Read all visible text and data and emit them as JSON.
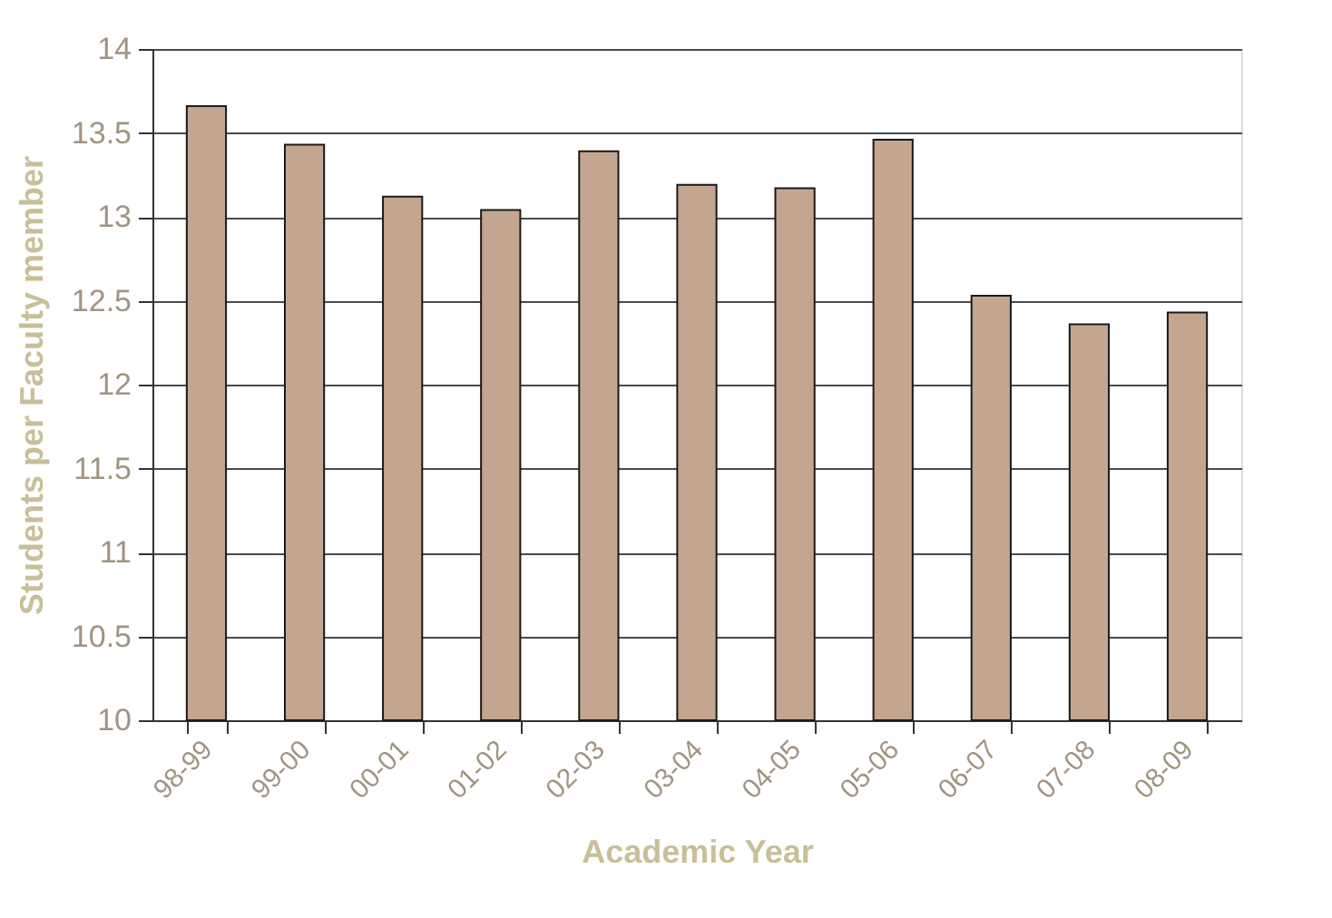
{
  "chart_data": {
    "type": "bar",
    "xlabel": "Academic Year",
    "ylabel": "Students per Faculty member",
    "categories": [
      "98-99",
      "99-00",
      "00-01",
      "01-02",
      "02-03",
      "03-04",
      "04-05",
      "05-06",
      "06-07",
      "07-08",
      "08-09"
    ],
    "values": [
      13.66,
      13.43,
      13.12,
      13.04,
      13.39,
      13.19,
      13.17,
      13.46,
      12.53,
      12.36,
      12.43
    ],
    "color": "#c4a590",
    "ylim": [
      10,
      14
    ],
    "yticks": [
      10,
      10.5,
      11,
      11.5,
      12,
      12.5,
      13,
      13.5,
      14
    ],
    "grid": "y"
  }
}
